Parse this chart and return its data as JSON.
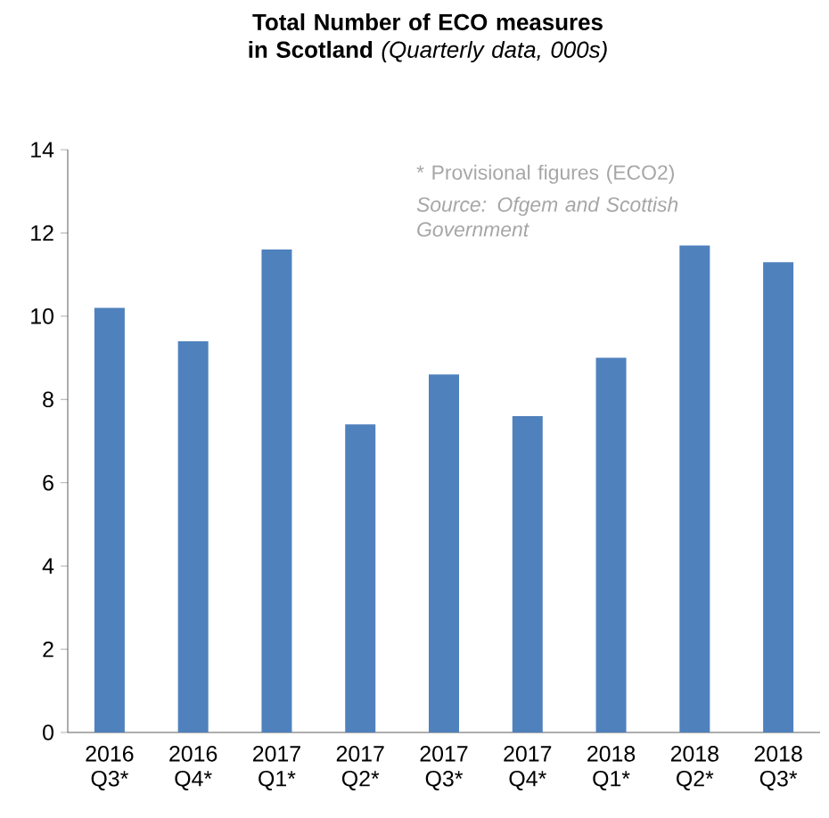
{
  "chart_data": {
    "type": "bar",
    "title": "**Total Number of ECO measures in Scotland** *(Quarterly data, 000s)*",
    "categories": [
      "2016 Q3*",
      "2016 Q4*",
      "2017 Q1*",
      "2017 Q2*",
      "2017 Q3*",
      "2017 Q4*",
      "2018 Q1*",
      "2018 Q2*",
      "2018 Q3*"
    ],
    "values": [
      10.2,
      9.4,
      11.6,
      7.4,
      8.6,
      7.6,
      9.0,
      11.7,
      11.3
    ],
    "color": "#4f81bd",
    "ylim": [
      0,
      14
    ],
    "yticks": [
      0,
      2,
      4,
      6,
      8,
      10,
      12,
      14
    ],
    "annotations": [
      "* Provisional figures (ECO2)",
      "Source: Ofgem and Scottish Government"
    ]
  }
}
